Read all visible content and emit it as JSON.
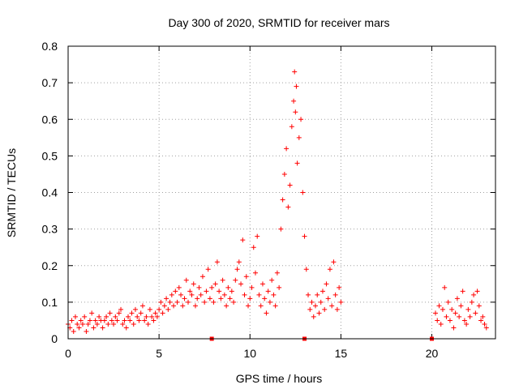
{
  "chart_data": {
    "type": "scatter",
    "title": "Day 300 of 2020, SRMTID for receiver mars",
    "xlabel": "GPS time / hours",
    "ylabel": "SRMTID / TECUs",
    "xlim": [
      0,
      23.5
    ],
    "ylim": [
      0,
      0.8
    ],
    "xticks": [
      0,
      5,
      10,
      15,
      20
    ],
    "yticks": [
      0,
      0.1,
      0.2,
      0.3,
      0.4,
      0.5,
      0.6,
      0.7,
      0.8
    ],
    "xtick_labels": [
      "0",
      "5",
      "10",
      "15",
      "20"
    ],
    "ytick_labels": [
      "0",
      "0.1",
      "0.2",
      "0.3",
      "0.4",
      "0.5",
      "0.6",
      "0.7",
      "0.8"
    ],
    "grid": true,
    "marker": "+",
    "color": "#ff0000",
    "gap_markers_x": [
      7.9,
      13.0,
      20.0
    ],
    "series": [
      {
        "name": "SRMTID",
        "points": [
          [
            0.0,
            0.04
          ],
          [
            0.1,
            0.03
          ],
          [
            0.2,
            0.05
          ],
          [
            0.3,
            0.02
          ],
          [
            0.4,
            0.06
          ],
          [
            0.5,
            0.04
          ],
          [
            0.6,
            0.03
          ],
          [
            0.7,
            0.05
          ],
          [
            0.8,
            0.04
          ],
          [
            0.9,
            0.06
          ],
          [
            1.0,
            0.02
          ],
          [
            1.1,
            0.04
          ],
          [
            1.2,
            0.05
          ],
          [
            1.3,
            0.07
          ],
          [
            1.4,
            0.03
          ],
          [
            1.5,
            0.05
          ],
          [
            1.6,
            0.04
          ],
          [
            1.7,
            0.06
          ],
          [
            1.8,
            0.05
          ],
          [
            1.9,
            0.03
          ],
          [
            2.0,
            0.05
          ],
          [
            2.1,
            0.06
          ],
          [
            2.2,
            0.04
          ],
          [
            2.3,
            0.07
          ],
          [
            2.4,
            0.05
          ],
          [
            2.5,
            0.04
          ],
          [
            2.6,
            0.06
          ],
          [
            2.7,
            0.05
          ],
          [
            2.8,
            0.07
          ],
          [
            2.9,
            0.08
          ],
          [
            3.0,
            0.04
          ],
          [
            3.1,
            0.05
          ],
          [
            3.2,
            0.03
          ],
          [
            3.3,
            0.06
          ],
          [
            3.4,
            0.05
          ],
          [
            3.5,
            0.07
          ],
          [
            3.6,
            0.04
          ],
          [
            3.7,
            0.08
          ],
          [
            3.8,
            0.06
          ],
          [
            3.9,
            0.05
          ],
          [
            4.0,
            0.07
          ],
          [
            4.1,
            0.09
          ],
          [
            4.2,
            0.05
          ],
          [
            4.3,
            0.06
          ],
          [
            4.4,
            0.04
          ],
          [
            4.5,
            0.08
          ],
          [
            4.6,
            0.06
          ],
          [
            4.7,
            0.05
          ],
          [
            4.8,
            0.07
          ],
          [
            4.9,
            0.06
          ],
          [
            5.0,
            0.08
          ],
          [
            5.1,
            0.1
          ],
          [
            5.2,
            0.07
          ],
          [
            5.3,
            0.09
          ],
          [
            5.4,
            0.11
          ],
          [
            5.5,
            0.08
          ],
          [
            5.6,
            0.1
          ],
          [
            5.7,
            0.12
          ],
          [
            5.8,
            0.09
          ],
          [
            5.9,
            0.13
          ],
          [
            6.0,
            0.1
          ],
          [
            6.1,
            0.14
          ],
          [
            6.2,
            0.12
          ],
          [
            6.3,
            0.09
          ],
          [
            6.4,
            0.11
          ],
          [
            6.5,
            0.16
          ],
          [
            6.6,
            0.1
          ],
          [
            6.7,
            0.13
          ],
          [
            6.8,
            0.12
          ],
          [
            6.9,
            0.15
          ],
          [
            7.0,
            0.09
          ],
          [
            7.1,
            0.11
          ],
          [
            7.2,
            0.14
          ],
          [
            7.3,
            0.12
          ],
          [
            7.4,
            0.17
          ],
          [
            7.5,
            0.1
          ],
          [
            7.6,
            0.13
          ],
          [
            7.7,
            0.19
          ],
          [
            7.8,
            0.11
          ],
          [
            7.9,
            0.14
          ],
          [
            8.0,
            0.1
          ],
          [
            8.1,
            0.15
          ],
          [
            8.2,
            0.21
          ],
          [
            8.3,
            0.13
          ],
          [
            8.4,
            0.11
          ],
          [
            8.5,
            0.16
          ],
          [
            8.6,
            0.12
          ],
          [
            8.7,
            0.09
          ],
          [
            8.8,
            0.14
          ],
          [
            8.9,
            0.11
          ],
          [
            9.0,
            0.13
          ],
          [
            9.1,
            0.1
          ],
          [
            9.2,
            0.16
          ],
          [
            9.3,
            0.19
          ],
          [
            9.4,
            0.21
          ],
          [
            9.5,
            0.15
          ],
          [
            9.6,
            0.27
          ],
          [
            9.7,
            0.12
          ],
          [
            9.8,
            0.17
          ],
          [
            9.9,
            0.09
          ],
          [
            10.0,
            0.11
          ],
          [
            10.1,
            0.14
          ],
          [
            10.2,
            0.25
          ],
          [
            10.3,
            0.18
          ],
          [
            10.4,
            0.28
          ],
          [
            10.5,
            0.12
          ],
          [
            10.6,
            0.09
          ],
          [
            10.7,
            0.15
          ],
          [
            10.8,
            0.11
          ],
          [
            10.9,
            0.07
          ],
          [
            11.0,
            0.13
          ],
          [
            11.1,
            0.1
          ],
          [
            11.2,
            0.16
          ],
          [
            11.3,
            0.12
          ],
          [
            11.4,
            0.09
          ],
          [
            11.5,
            0.18
          ],
          [
            11.6,
            0.14
          ],
          [
            11.7,
            0.3
          ],
          [
            11.8,
            0.38
          ],
          [
            11.9,
            0.45
          ],
          [
            12.0,
            0.52
          ],
          [
            12.1,
            0.36
          ],
          [
            12.2,
            0.42
          ],
          [
            12.3,
            0.58
          ],
          [
            12.4,
            0.65
          ],
          [
            12.45,
            0.73
          ],
          [
            12.5,
            0.62
          ],
          [
            12.55,
            0.69
          ],
          [
            12.6,
            0.48
          ],
          [
            12.7,
            0.55
          ],
          [
            12.8,
            0.6
          ],
          [
            12.9,
            0.4
          ],
          [
            13.0,
            0.28
          ],
          [
            13.1,
            0.19
          ],
          [
            13.2,
            0.12
          ],
          [
            13.3,
            0.08
          ],
          [
            13.4,
            0.1
          ],
          [
            13.5,
            0.06
          ],
          [
            13.6,
            0.09
          ],
          [
            13.7,
            0.12
          ],
          [
            13.8,
            0.07
          ],
          [
            13.9,
            0.1
          ],
          [
            14.0,
            0.13
          ],
          [
            14.1,
            0.08
          ],
          [
            14.2,
            0.15
          ],
          [
            14.3,
            0.11
          ],
          [
            14.4,
            0.19
          ],
          [
            14.5,
            0.09
          ],
          [
            14.6,
            0.21
          ],
          [
            14.7,
            0.12
          ],
          [
            14.8,
            0.08
          ],
          [
            14.9,
            0.14
          ],
          [
            15.0,
            0.1
          ],
          [
            20.2,
            0.07
          ],
          [
            20.3,
            0.05
          ],
          [
            20.4,
            0.09
          ],
          [
            20.5,
            0.04
          ],
          [
            20.6,
            0.08
          ],
          [
            20.7,
            0.14
          ],
          [
            20.8,
            0.06
          ],
          [
            20.9,
            0.1
          ],
          [
            21.0,
            0.05
          ],
          [
            21.1,
            0.08
          ],
          [
            21.2,
            0.03
          ],
          [
            21.3,
            0.07
          ],
          [
            21.4,
            0.11
          ],
          [
            21.5,
            0.06
          ],
          [
            21.6,
            0.09
          ],
          [
            21.7,
            0.13
          ],
          [
            21.8,
            0.05
          ],
          [
            21.9,
            0.04
          ],
          [
            22.0,
            0.08
          ],
          [
            22.1,
            0.06
          ],
          [
            22.2,
            0.1
          ],
          [
            22.3,
            0.12
          ],
          [
            22.4,
            0.07
          ],
          [
            22.5,
            0.13
          ],
          [
            22.6,
            0.09
          ],
          [
            22.7,
            0.05
          ],
          [
            22.8,
            0.06
          ],
          [
            22.9,
            0.04
          ],
          [
            23.0,
            0.03
          ]
        ]
      }
    ]
  }
}
